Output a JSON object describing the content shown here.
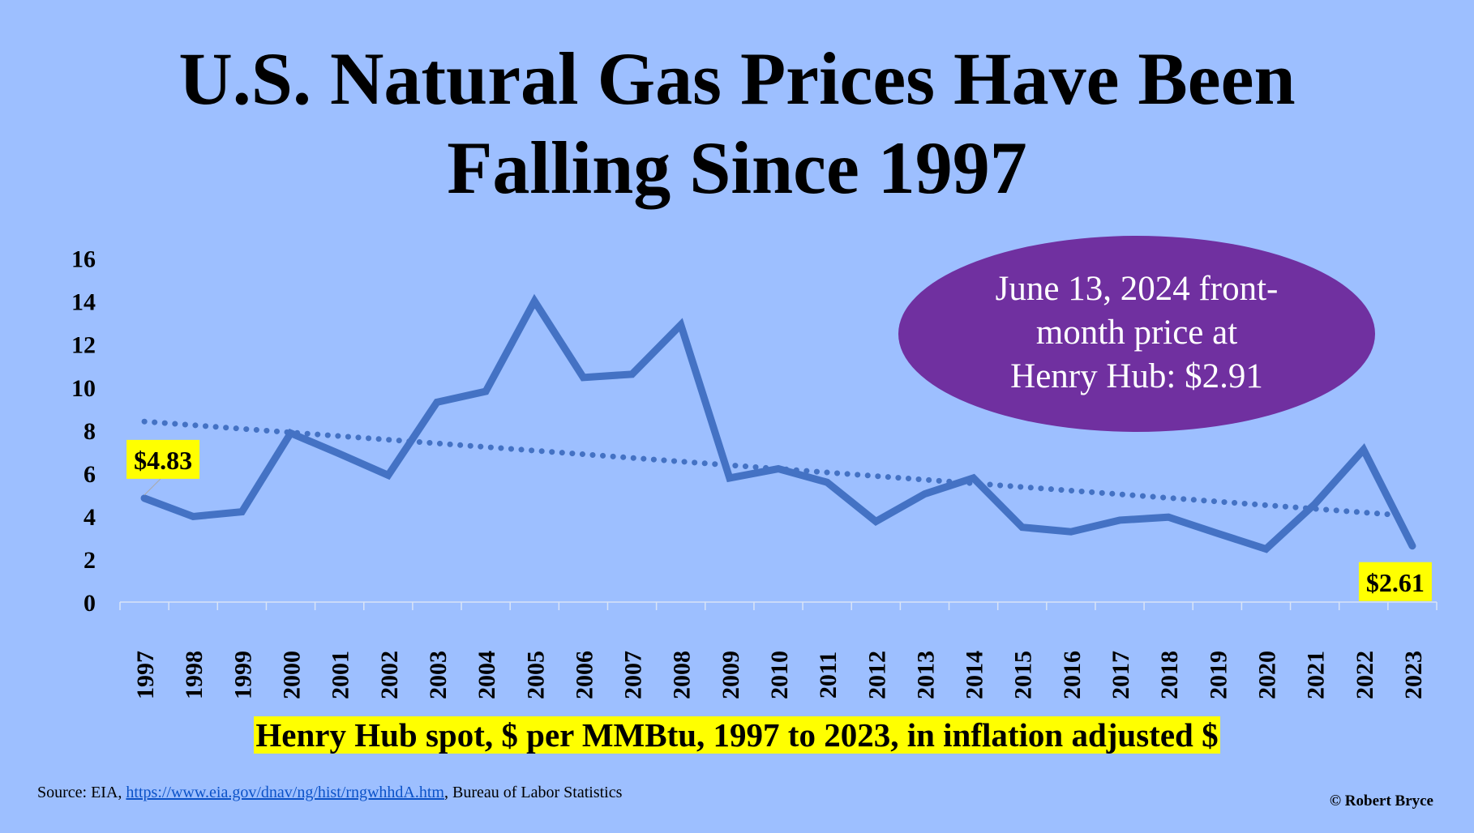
{
  "title_lines": [
    "U.S. Natural Gas Prices Have Been",
    "Falling Since 1997"
  ],
  "callout": {
    "lines": [
      "June 13, 2024 front-",
      "month price at",
      "Henry Hub: $2.91"
    ],
    "color": "#7030A0"
  },
  "subtitle": "Henry Hub spot, $ per MMBtu, 1997 to 2023, in inflation adjusted $",
  "source": {
    "prefix": "Source: EIA, ",
    "link": "https://www.eia.gov/dnav/ng/hist/rngwhhdA.htm",
    "suffix": ", Bureau of Labor Statistics"
  },
  "copyright": "© Robert Bryce",
  "colors": {
    "background": "#9dbfff",
    "line": "#4472C4",
    "label_highlight": "#ffff00"
  },
  "chart_data": {
    "type": "line",
    "title": "",
    "xlabel": "",
    "ylabel": "",
    "ylim": [
      0,
      16
    ],
    "yticks": [
      "0",
      "2",
      "4",
      "6",
      "8",
      "10",
      "12",
      "14",
      "16"
    ],
    "grid": false,
    "categories": [
      "1997",
      "1998",
      "1999",
      "2000",
      "2001",
      "2002",
      "2003",
      "2004",
      "2005",
      "2006",
      "2007",
      "2008",
      "2009",
      "2010",
      "2011",
      "2012",
      "2013",
      "2014",
      "2015",
      "2016",
      "2017",
      "2018",
      "2019",
      "2020",
      "2021",
      "2022",
      "2023"
    ],
    "series": [
      {
        "values": [
          4.83,
          3.98,
          4.2,
          7.86,
          6.9,
          5.9,
          9.3,
          9.8,
          14.0,
          10.45,
          10.6,
          12.9,
          5.77,
          6.2,
          5.57,
          3.75,
          5.03,
          5.77,
          3.48,
          3.27,
          3.81,
          3.95,
          3.2,
          2.47,
          4.56,
          7.09,
          2.61
        ],
        "style": "solid"
      }
    ],
    "trendline": {
      "type": "linear",
      "style": "dotted",
      "start": 8.4,
      "end": 4.0
    },
    "data_labels": [
      {
        "category": "1997",
        "text": "$4.83"
      },
      {
        "category": "2023",
        "text": "$2.61"
      }
    ]
  }
}
